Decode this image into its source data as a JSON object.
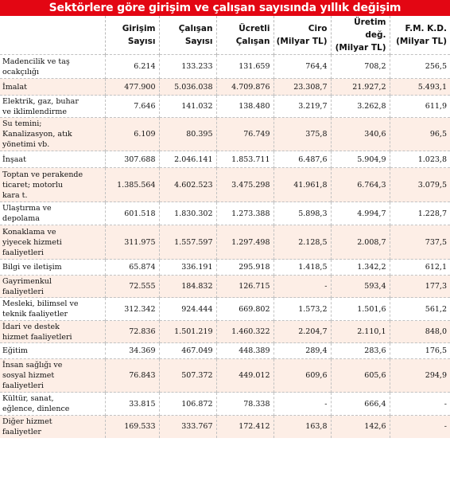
{
  "title": "Sektörlere göre girişim ve çalışan sayısında yıllık değişim",
  "headers": [
    {
      "line1": "",
      "line2": ""
    },
    {
      "line1": "Girişim",
      "line2": "Sayısı"
    },
    {
      "line1": "Çalışan",
      "line2": "Sayısı"
    },
    {
      "line1": "Ücretli",
      "line2": "Çalışan"
    },
    {
      "line1": "Ciro",
      "line2": "(Milyar TL)"
    },
    {
      "line1": "Üretim değ.",
      "line2": "(Milyar TL)"
    },
    {
      "line1": "F.M. K.D.",
      "line2": "(Milyar TL)"
    }
  ],
  "rows": [
    {
      "name": [
        "Madencilik ve taş",
        "ocakçılığı"
      ],
      "values": [
        "6.214",
        "133.233",
        "131.659",
        "764,4",
        "708,2",
        "256,5"
      ]
    },
    {
      "name": [
        "İmalat"
      ],
      "values": [
        "477.900",
        "5.036.038",
        "4.709.876",
        "23.308,7",
        "21.927,2",
        "5.493,1"
      ]
    },
    {
      "name": [
        "Elektrik, gaz, buhar",
        "ve iklimlendirme"
      ],
      "values": [
        "7.646",
        "141.032",
        "138.480",
        "3.219,7",
        "3.262,8",
        "611,9"
      ]
    },
    {
      "name": [
        "Su temini;",
        "Kanalizasyon, atık",
        "yönetimi vb."
      ],
      "values": [
        "6.109",
        "80.395",
        "76.749",
        "375,8",
        "340,6",
        "96,5"
      ]
    },
    {
      "name": [
        "İnşaat"
      ],
      "values": [
        "307.688",
        "2.046.141",
        "1.853.711",
        "6.487,6",
        "5.904,9",
        "1.023,8"
      ]
    },
    {
      "name": [
        "Toptan ve perakende",
        "ticaret; motorlu",
        "kara t."
      ],
      "values": [
        "1.385.564",
        "4.602.523",
        "3.475.298",
        "41.961,8",
        "6.764,3",
        "3.079,5"
      ]
    },
    {
      "name": [
        "Ulaştırma ve",
        "depolama"
      ],
      "values": [
        "601.518",
        "1.830.302",
        "1.273.388",
        "5.898,3",
        "4.994,7",
        "1.228,7"
      ]
    },
    {
      "name": [
        "Konaklama ve",
        "yiyecek hizmeti",
        "faaliyetleri"
      ],
      "values": [
        "311.975",
        "1.557.597",
        "1.297.498",
        "2.128,5",
        "2.008,7",
        "737,5"
      ]
    },
    {
      "name": [
        "Bilgi ve iletişim"
      ],
      "values": [
        "65.874",
        "336.191",
        "295.918",
        "1.418,5",
        "1.342,2",
        "612,1"
      ]
    },
    {
      "name": [
        "Gayrimenkul",
        "faaliyetleri"
      ],
      "values": [
        "72.555",
        "184.832",
        "126.715",
        "-",
        "593,4",
        "177,3"
      ]
    },
    {
      "name": [
        "Mesleki, bilimsel ve",
        "teknik faaliyetler"
      ],
      "values": [
        "312.342",
        "924.444",
        "669.802",
        "1.573,2",
        "1.501,6",
        "561,2"
      ]
    },
    {
      "name": [
        "İdari ve destek",
        "hizmet faaliyetleri"
      ],
      "values": [
        "72.836",
        "1.501.219",
        "1.460.322",
        "2.204,7",
        "2.110,1",
        "848,0"
      ]
    },
    {
      "name": [
        "Eğitim"
      ],
      "values": [
        "34.369",
        "467.049",
        "448.389",
        "289,4",
        "283,6",
        "176,5"
      ]
    },
    {
      "name": [
        "İnsan sağlığı ve",
        "sosyal hizmet",
        "faaliyetleri"
      ],
      "values": [
        "76.843",
        "507.372",
        "449.012",
        "609,6",
        "605,6",
        "294,9"
      ]
    },
    {
      "name": [
        "Kültür, sanat,",
        "eğlence, dinlence"
      ],
      "values": [
        "33.815",
        "106.872",
        "78.338",
        "-",
        "666,4",
        "-"
      ]
    },
    {
      "name": [
        "Diğer hizmet",
        "faaliyetler"
      ],
      "values": [
        "169.533",
        "333.767",
        "172.412",
        "163,8",
        "142,6",
        "-"
      ]
    }
  ]
}
